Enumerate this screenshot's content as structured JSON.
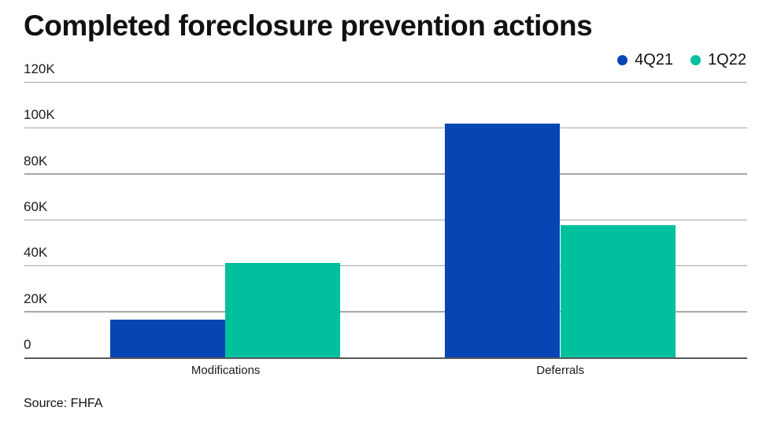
{
  "title": "Completed foreclosure prevention actions",
  "source": "Source: FHFA",
  "legend": {
    "position": "top-right",
    "items": [
      {
        "label": "4Q21",
        "color": "#0546B4"
      },
      {
        "label": "1Q22",
        "color": "#00C09D"
      }
    ]
  },
  "chart_data": {
    "type": "bar",
    "title": "Completed foreclosure prevention actions",
    "categories": [
      "Modifications",
      "Deferrals"
    ],
    "series": [
      {
        "name": "4Q21",
        "color": "#0546B4",
        "values": [
          16500,
          102000
        ]
      },
      {
        "name": "1Q22",
        "color": "#00C09D",
        "values": [
          41000,
          57500
        ]
      }
    ],
    "xlabel": "",
    "ylabel": "",
    "ylim": [
      0,
      120000
    ],
    "y_ticks": [
      {
        "label": "120K",
        "value": 120000
      },
      {
        "label": "100K",
        "value": 100000
      },
      {
        "label": "80K",
        "value": 80000
      },
      {
        "label": "60K",
        "value": 60000
      },
      {
        "label": "40K",
        "value": 40000
      },
      {
        "label": "20K",
        "value": 20000
      },
      {
        "label": "0",
        "value": 0
      }
    ],
    "grid": true,
    "legend_position": "top-right",
    "source": "Source: FHFA"
  }
}
